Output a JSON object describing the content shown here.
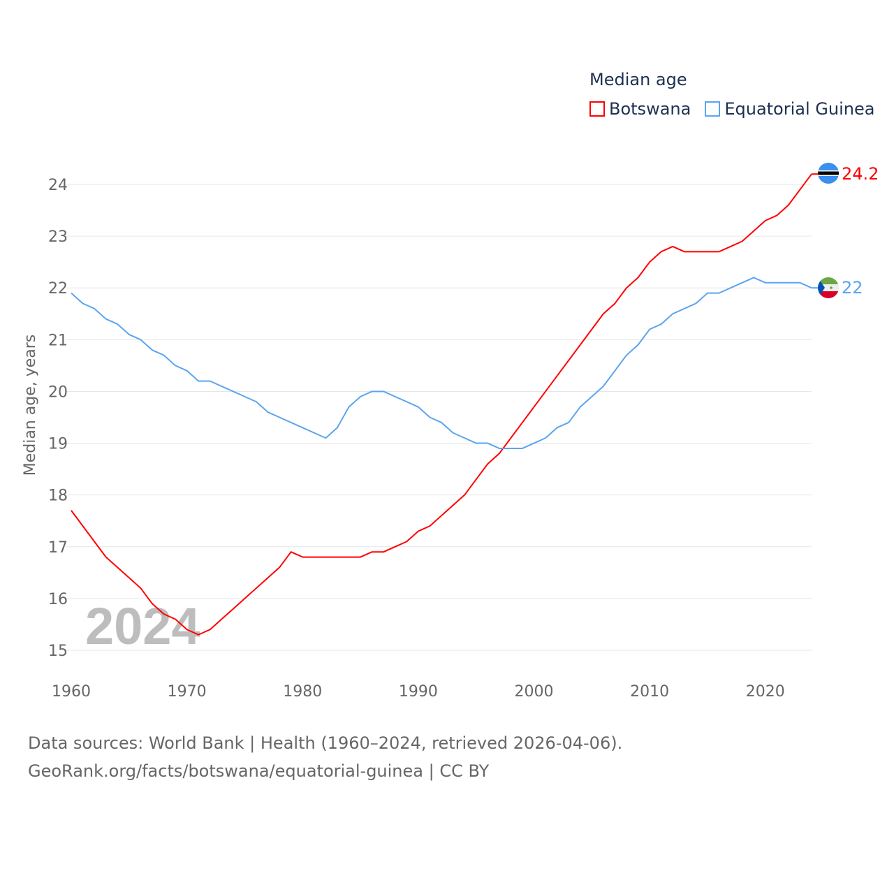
{
  "chart_data": {
    "type": "line",
    "title": "Median age",
    "ylabel": "Median age, years",
    "xlabel": "",
    "xlim": [
      1960,
      2024
    ],
    "ylim": [
      15,
      24
    ],
    "xticks": [
      1960,
      1970,
      1980,
      1990,
      2000,
      2010,
      2020
    ],
    "yticks": [
      15,
      16,
      17,
      18,
      19,
      20,
      21,
      22,
      23,
      24
    ],
    "grid": true,
    "legend_position": "top-right",
    "year_watermark": "2024",
    "x": [
      1960,
      1961,
      1962,
      1963,
      1964,
      1965,
      1966,
      1967,
      1968,
      1969,
      1970,
      1971,
      1972,
      1973,
      1974,
      1975,
      1976,
      1977,
      1978,
      1979,
      1980,
      1981,
      1982,
      1983,
      1984,
      1985,
      1986,
      1987,
      1988,
      1989,
      1990,
      1991,
      1992,
      1993,
      1994,
      1995,
      1996,
      1997,
      1998,
      1999,
      2000,
      2001,
      2002,
      2003,
      2004,
      2005,
      2006,
      2007,
      2008,
      2009,
      2010,
      2011,
      2012,
      2013,
      2014,
      2015,
      2016,
      2017,
      2018,
      2019,
      2020,
      2021,
      2022,
      2023,
      2024
    ],
    "series": [
      {
        "name": "Botswana",
        "color": "#ff0000",
        "end_label": "24.2",
        "values": [
          17.7,
          17.4,
          17.1,
          16.8,
          16.6,
          16.4,
          16.2,
          15.9,
          15.7,
          15.6,
          15.4,
          15.3,
          15.4,
          15.6,
          15.8,
          16.0,
          16.2,
          16.4,
          16.6,
          16.9,
          16.8,
          16.8,
          16.8,
          16.8,
          16.8,
          16.8,
          16.9,
          16.9,
          17.0,
          17.1,
          17.3,
          17.4,
          17.6,
          17.8,
          18.0,
          18.3,
          18.6,
          18.8,
          19.1,
          19.4,
          19.7,
          20.0,
          20.3,
          20.6,
          20.9,
          21.2,
          21.5,
          21.7,
          22.0,
          22.2,
          22.5,
          22.7,
          22.8,
          22.7,
          22.7,
          22.7,
          22.7,
          22.8,
          22.9,
          23.1,
          23.3,
          23.4,
          23.6,
          23.9,
          24.2
        ]
      },
      {
        "name": "Equatorial Guinea",
        "color": "#5ba4f0",
        "end_label": "22",
        "values": [
          21.9,
          21.7,
          21.6,
          21.4,
          21.3,
          21.1,
          21.0,
          20.8,
          20.7,
          20.5,
          20.4,
          20.2,
          20.2,
          20.1,
          20.0,
          19.9,
          19.8,
          19.6,
          19.5,
          19.4,
          19.3,
          19.2,
          19.1,
          19.3,
          19.7,
          19.9,
          20.0,
          20.0,
          19.9,
          19.8,
          19.7,
          19.5,
          19.4,
          19.2,
          19.1,
          19.0,
          19.0,
          18.9,
          18.9,
          18.9,
          19.0,
          19.1,
          19.3,
          19.4,
          19.7,
          19.9,
          20.1,
          20.4,
          20.7,
          20.9,
          21.2,
          21.3,
          21.5,
          21.6,
          21.7,
          21.9,
          21.9,
          22.0,
          22.1,
          22.2,
          22.1,
          22.1,
          22.1,
          22.1,
          22.0
        ]
      }
    ]
  },
  "footer": {
    "line1": "Data sources: World Bank | Health (1960–2024, retrieved 2026-04-06).",
    "line2": "GeoRank.org/facts/botswana/equatorial-guinea | CC BY"
  }
}
